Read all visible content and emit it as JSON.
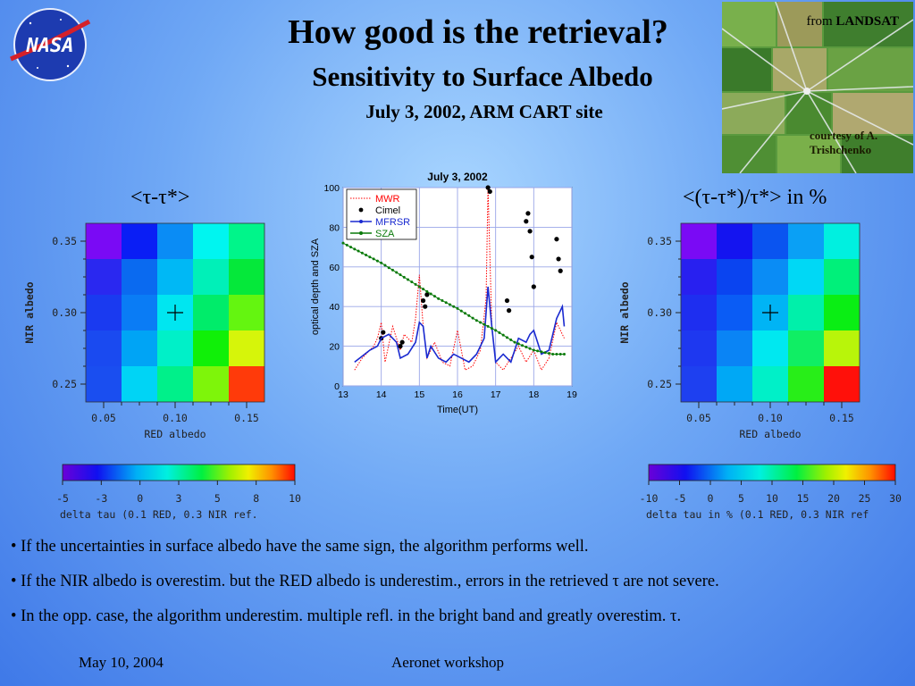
{
  "header": {
    "title": "How good is the retrieval?",
    "subtitle": "Sensitivity to Surface Albedo",
    "date_site": "July 3, 2002, ARM CART site"
  },
  "logo": {
    "text": "NASA"
  },
  "landsat": {
    "from_prefix": "from ",
    "from_source": "LANDSAT",
    "courtesy": "courtesy of A. Trishchenko"
  },
  "left_map": {
    "label": "<τ-τ*>",
    "ylabel": "NIR albedo",
    "xlabel": "RED albedo",
    "yticks": [
      "0.35",
      "0.30",
      "0.25"
    ],
    "xticks": [
      "0.05",
      "0.10",
      "0.15"
    ],
    "colorbar_ticks": [
      "-5",
      "-3",
      "0",
      "3",
      "5",
      "8",
      "10"
    ],
    "colorbar_label": "delta tau (0.1 RED, 0.3 NIR ref.",
    "cells": [
      [
        "#7a0af5",
        "#0a1ef5",
        "#0a8cf5",
        "#00f5f0",
        "#00f58a"
      ],
      [
        "#2a28f0",
        "#0a6af0",
        "#00b8f5",
        "#00f0b8",
        "#05e83a"
      ],
      [
        "#1a3af0",
        "#0a7cf5",
        "#00e6f0",
        "#00ec6a",
        "#64f510"
      ],
      [
        "#1a4af0",
        "#00a4f5",
        "#00f0c8",
        "#10f008",
        "#d6f50a"
      ],
      [
        "#1a4ef0",
        "#00d4f5",
        "#00f08a",
        "#7ef50a",
        "#ff3a0a"
      ]
    ]
  },
  "right_map": {
    "label": "<(τ-τ*)/τ*> in %",
    "ylabel": "NIR albedo",
    "xlabel": "RED albedo",
    "yticks": [
      "0.35",
      "0.30",
      "0.25"
    ],
    "xticks": [
      "0.05",
      "0.10",
      "0.15"
    ],
    "colorbar_ticks": [
      "-10",
      "-5",
      "0",
      "5",
      "10",
      "15",
      "20",
      "25",
      "30"
    ],
    "colorbar_label": "delta tau in % (0.1 RED, 0.3 NIR ref",
    "cells": [
      [
        "#7a0af5",
        "#1414f0",
        "#0a54f0",
        "#0aa0f5",
        "#00f0e0"
      ],
      [
        "#2820f0",
        "#0a44f0",
        "#0a8cf5",
        "#00d8f5",
        "#00f07a"
      ],
      [
        "#1e2ef0",
        "#0a5cf5",
        "#00b4f5",
        "#00f0aa",
        "#0aee14"
      ],
      [
        "#1e38f0",
        "#0a84f5",
        "#00e8f0",
        "#10ee64",
        "#b8f50a"
      ],
      [
        "#1e40f0",
        "#00a8f5",
        "#00f0c8",
        "#28ee18",
        "#ff100a"
      ]
    ]
  },
  "chart_data": {
    "type": "line",
    "title": "July 3, 2002",
    "xlabel": "Time(UT)",
    "ylabel": "optical depth and SZA",
    "xlim": [
      13,
      19
    ],
    "ylim": [
      0,
      100
    ],
    "xticks": [
      "13",
      "14",
      "15",
      "16",
      "17",
      "18",
      "19"
    ],
    "yticks": [
      "0",
      "20",
      "40",
      "60",
      "80",
      "100"
    ],
    "grid": true,
    "legend_position": "top-left",
    "series": [
      {
        "name": "MWR",
        "color": "#ff0000",
        "style": "dotted",
        "x": [
          13.3,
          13.5,
          13.8,
          13.9,
          14.0,
          14.1,
          14.3,
          14.5,
          14.6,
          14.8,
          14.9,
          15.0,
          15.1,
          15.2,
          15.4,
          15.6,
          15.8,
          16.0,
          16.2,
          16.4,
          16.6,
          16.75,
          16.8,
          16.9,
          17.0,
          17.2,
          17.4,
          17.6,
          17.8,
          18.0,
          18.2,
          18.4,
          18.6,
          18.8
        ],
        "y": [
          8,
          14,
          20,
          24,
          32,
          12,
          30,
          18,
          26,
          22,
          34,
          56,
          30,
          14,
          22,
          12,
          10,
          28,
          8,
          10,
          18,
          44,
          100,
          30,
          12,
          8,
          14,
          20,
          12,
          18,
          8,
          14,
          32,
          24
        ]
      },
      {
        "name": "Cimel",
        "color": "#000000",
        "style": "dots",
        "x": [
          14.0,
          14.05,
          14.5,
          14.55,
          15.1,
          15.15,
          15.2,
          16.8,
          16.85,
          17.3,
          17.35,
          17.8,
          17.85,
          17.9,
          17.95,
          18.0,
          18.6,
          18.65,
          18.7
        ],
        "y": [
          24,
          27,
          20,
          22,
          43,
          40,
          46,
          100,
          98,
          43,
          38,
          83,
          87,
          78,
          65,
          50,
          74,
          64,
          58
        ]
      },
      {
        "name": "MFRSR",
        "color": "#1a2ad0",
        "style": "line",
        "x": [
          13.3,
          13.5,
          13.7,
          13.9,
          14.0,
          14.2,
          14.4,
          14.5,
          14.7,
          14.9,
          15.0,
          15.1,
          15.2,
          15.3,
          15.5,
          15.7,
          15.9,
          16.1,
          16.3,
          16.5,
          16.7,
          16.8,
          16.9,
          17.0,
          17.2,
          17.4,
          17.6,
          17.8,
          17.9,
          18.0,
          18.2,
          18.4,
          18.6,
          18.75,
          18.8
        ],
        "y": [
          12,
          15,
          18,
          20,
          24,
          26,
          22,
          14,
          16,
          22,
          32,
          30,
          14,
          20,
          14,
          12,
          16,
          14,
          12,
          16,
          24,
          50,
          30,
          12,
          16,
          12,
          24,
          22,
          26,
          28,
          16,
          18,
          34,
          40,
          30
        ]
      },
      {
        "name": "SZA",
        "color": "#0a7a0a",
        "style": "line-markers",
        "x": [
          13.0,
          13.5,
          14.0,
          14.5,
          15.0,
          15.5,
          16.0,
          16.5,
          17.0,
          17.5,
          18.0,
          18.5,
          18.8
        ],
        "y": [
          72,
          67,
          62,
          56,
          50,
          44,
          39,
          33,
          28,
          22,
          18,
          16,
          16
        ]
      }
    ]
  },
  "bullets": [
    "• If the uncertainties in surface albedo have the same sign, the algorithm performs well.",
    "• If the NIR albedo is overestim. but the RED albedo is underestim., errors in the retrieved τ are not severe.",
    "• In the opp. case, the algorithm underestim. multiple refl. in the bright band and greatly overestim. τ."
  ],
  "footer": {
    "date": "May 10, 2004",
    "event": "Aeronet workshop"
  }
}
